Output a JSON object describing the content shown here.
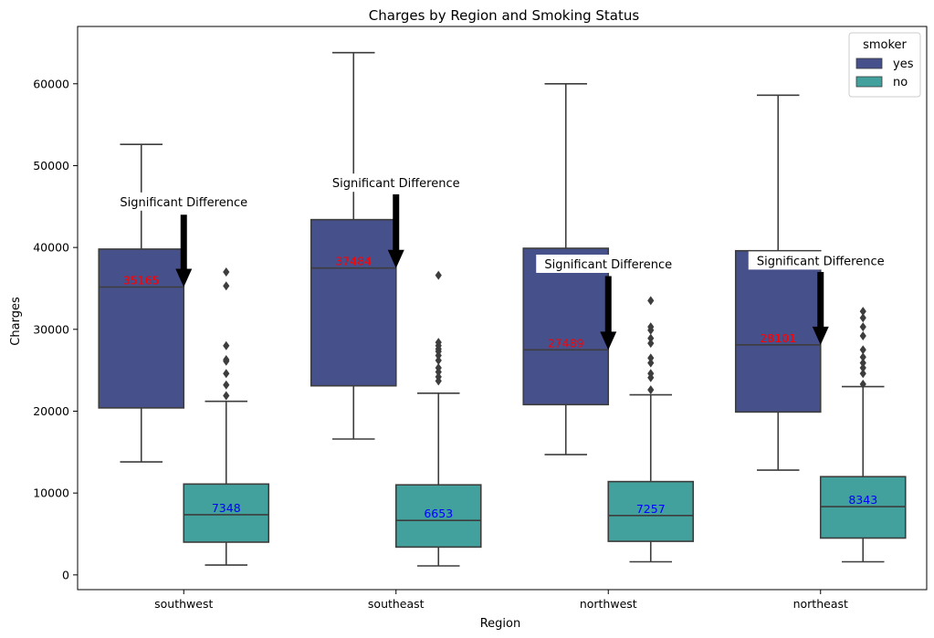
{
  "chart_data": {
    "type": "box",
    "title": "Charges by Region and Smoking Status",
    "xlabel": "Region",
    "ylabel": "Charges",
    "categories": [
      "southwest",
      "southeast",
      "northwest",
      "northeast"
    ],
    "ylim": [
      -1800,
      67000
    ],
    "yticks": [
      0,
      10000,
      20000,
      30000,
      40000,
      50000,
      60000
    ],
    "yticklabels": [
      "0",
      "10000",
      "20000",
      "30000",
      "40000",
      "50000",
      "60000"
    ],
    "legend": {
      "title": "smoker",
      "position": "top-right"
    },
    "grid": false,
    "series": [
      {
        "name": "yes",
        "color": "#46508a",
        "label_color": "#ff0000",
        "boxes": [
          {
            "whislo": 13800,
            "q1": 20400,
            "med": 35165,
            "q3": 39800,
            "whishi": 52600,
            "fliers": []
          },
          {
            "whislo": 16600,
            "q1": 23100,
            "med": 37484,
            "q3": 43400,
            "whishi": 63800,
            "fliers": []
          },
          {
            "whislo": 14700,
            "q1": 20800,
            "med": 27489,
            "q3": 39900,
            "whishi": 60000,
            "fliers": []
          },
          {
            "whislo": 12800,
            "q1": 19900,
            "med": 28101,
            "q3": 39600,
            "whishi": 58600,
            "fliers": []
          }
        ],
        "median_labels": [
          "35165",
          "37484",
          "27489",
          "28101"
        ]
      },
      {
        "name": "no",
        "color": "#42a09d",
        "label_color": "#0000ff",
        "boxes": [
          {
            "whislo": 1200,
            "q1": 4000,
            "med": 7348,
            "q3": 11100,
            "whishi": 21200,
            "fliers": [
              21900,
              23200,
              24600,
              26100,
              26300,
              28000,
              35300,
              37000
            ]
          },
          {
            "whislo": 1100,
            "q1": 3400,
            "med": 6653,
            "q3": 11000,
            "whishi": 22200,
            "fliers": [
              23700,
              24200,
              24800,
              25300,
              26200,
              26800,
              27300,
              27600,
              28000,
              28400,
              36600
            ]
          },
          {
            "whislo": 1600,
            "q1": 4100,
            "med": 7257,
            "q3": 11400,
            "whishi": 22000,
            "fliers": [
              22600,
              24100,
              24600,
              25900,
              26500,
              28300,
              28900,
              29900,
              30300,
              33500
            ]
          },
          {
            "whislo": 1600,
            "q1": 4500,
            "med": 8343,
            "q3": 12000,
            "whishi": 23000,
            "fliers": [
              23300,
              24600,
              25300,
              25900,
              26600,
              27500,
              29200,
              30300,
              31400,
              32200
            ]
          }
        ],
        "median_labels": [
          "7348",
          "6653",
          "7257",
          "8343"
        ]
      }
    ],
    "annotations": [
      {
        "text": "Significant Difference",
        "category": 0,
        "text_y": 45500,
        "arrow_from": 44000,
        "arrow_to": 35165
      },
      {
        "text": "Significant Difference",
        "category": 1,
        "text_y": 47800,
        "arrow_from": 46500,
        "arrow_to": 37484
      },
      {
        "text": "Significant Difference",
        "category": 2,
        "text_y": 37900,
        "arrow_from": 36500,
        "arrow_to": 27489
      },
      {
        "text": "Significant Difference",
        "category": 3,
        "text_y": 38300,
        "arrow_from": 37000,
        "arrow_to": 28101
      }
    ]
  }
}
